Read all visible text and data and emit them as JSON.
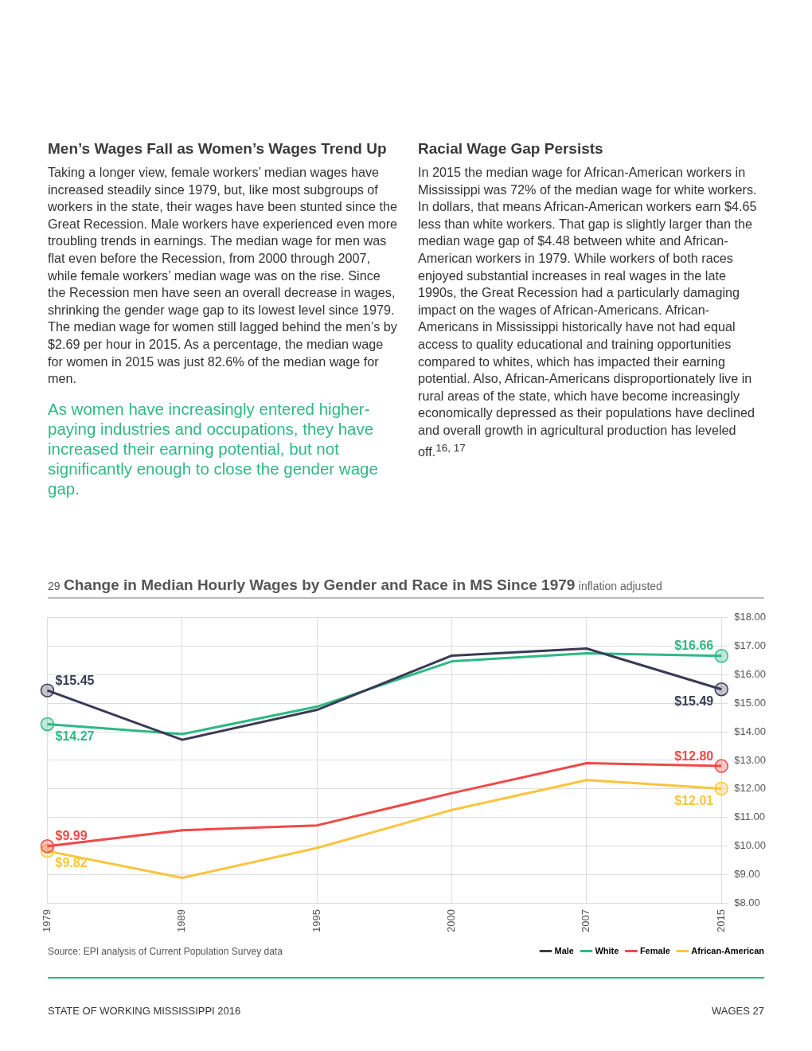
{
  "chart_data": {
    "type": "line",
    "title": "Change in Median Hourly Wages by Gender and Race in MS Since 1979",
    "subtitle": "inflation adjusted",
    "categories": [
      "1979",
      "1989",
      "1995",
      "2000",
      "2007",
      "2015"
    ],
    "series": [
      {
        "name": "Male",
        "color": "#3b3a56",
        "values": [
          15.45,
          13.72,
          14.77,
          16.67,
          16.92,
          15.49
        ],
        "value_labels": [
          "$15.45",
          null,
          null,
          null,
          null,
          "$15.49"
        ]
      },
      {
        "name": "White",
        "color": "#2db983",
        "values": [
          14.27,
          13.92,
          14.88,
          16.47,
          16.75,
          16.66
        ],
        "value_labels": [
          "$14.27",
          null,
          null,
          null,
          null,
          "$16.66"
        ]
      },
      {
        "name": "Female",
        "color": "#f04848",
        "values": [
          9.99,
          10.55,
          10.72,
          11.85,
          12.9,
          12.8
        ],
        "value_labels": [
          "$9.99",
          null,
          null,
          null,
          null,
          "$12.80"
        ]
      },
      {
        "name": "African-American",
        "color": "#fcc43c",
        "values": [
          9.82,
          8.88,
          9.93,
          11.26,
          12.31,
          12.01
        ],
        "value_labels": [
          "$9.82",
          null,
          null,
          null,
          null,
          "$12.01"
        ]
      }
    ],
    "ylim": [
      8,
      18
    ],
    "yticks": [
      {
        "value": 8,
        "label": "$8.00"
      },
      {
        "value": 9,
        "label": "$9.00"
      },
      {
        "value": 10,
        "label": "$10.00"
      },
      {
        "value": 11,
        "label": "$11.00"
      },
      {
        "value": 12,
        "label": "$12.00"
      },
      {
        "value": 13,
        "label": "$13.00"
      },
      {
        "value": 14,
        "label": "$14.00"
      },
      {
        "value": 15,
        "label": "$15.00"
      },
      {
        "value": 16,
        "label": "$16.00"
      },
      {
        "value": 17,
        "label": "$17.00"
      },
      {
        "value": 18,
        "label": "$18.00"
      }
    ],
    "grid": true,
    "legend": "bottom right",
    "line_style": "solid",
    "annotations": [
      "Men’s Wages Fall as Women’s Wages Trend Up",
      "Taking a longer view, female workers’ median wages have increased steadily since 1979, but, like most subgroups of workers in the state, their wages have been stunted since the Great Recession. Male workers have experienced even more troubling trends in earnings. The median wage for men was flat even before the Recession, from 2000 through 2007, while female workers’ median wage was on the rise. Since the Recession men have seen an overall decrease in wages, shrinking the gender wage gap to its lowest level since 1979. The median wage for women still lagged behind the men’s by $2.69 per hour in 2015. As a percentage, the median wage for women in 2015 was just 82.6% of the median wage for men.",
      "As women have increasingly entered higher-paying industries and occupations, they have increased their earning potential, but not significantly enough to close the gender wage gap.",
      "Racial Wage Gap Persists",
      "In 2015 the median wage for African-American workers in Mississippi was 72% of the median wage for white workers. In dollars, that means African-American workers earn $4.65 less than white workers. That gap is slightly larger than the median wage gap of $4.48 between white and African-American workers in 1979. While workers of both races enjoyed substantial increases in real wages in the late 1990s, the Great Recession had a particularly damaging impact on the wages of African-Americans. African-Americans in Mississippi historically have not had equal access to quality educational and training opportunities compared to whites, which has impacted their earning potential. Also, African-Americans disproportionately live in rural areas of the state, which have become increasingly economically depressed as their populations have declined and overall growth in agricultural production has leveled off.$^{16, 17}$",
      "29",
      "Source: EPI analysis of Current Population Survey data",
      "STATE OF WORKING MISSISSIPPI 2016",
      "WAGES 27"
    ]
  }
}
